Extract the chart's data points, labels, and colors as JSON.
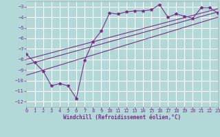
{
  "background_color": "#b2d8d8",
  "grid_color": "#ffffff",
  "line_color": "#7b2d8b",
  "xlabel": "Windchill (Refroidissement éolien,°C)",
  "xlim": [
    0,
    23
  ],
  "ylim": [
    -12.5,
    -2.5
  ],
  "yticks": [
    -3,
    -4,
    -5,
    -6,
    -7,
    -8,
    -9,
    -10,
    -11,
    -12
  ],
  "xticks": [
    0,
    1,
    2,
    3,
    4,
    5,
    6,
    7,
    8,
    9,
    10,
    11,
    12,
    13,
    14,
    15,
    16,
    17,
    18,
    19,
    20,
    21,
    22,
    23
  ],
  "scatter_x": [
    0,
    1,
    2,
    3,
    4,
    5,
    6,
    7,
    8,
    9,
    10,
    11,
    12,
    13,
    14,
    15,
    16,
    17,
    18,
    19,
    20,
    21,
    22,
    23
  ],
  "scatter_y": [
    -7.5,
    -8.3,
    -9.1,
    -10.5,
    -10.3,
    -10.5,
    -11.7,
    -8.1,
    -6.3,
    -5.3,
    -3.6,
    -3.7,
    -3.5,
    -3.4,
    -3.4,
    -3.3,
    -2.8,
    -4.0,
    -3.7,
    -3.9,
    -4.1,
    -3.1,
    -3.1,
    -3.6
  ],
  "line1_x": [
    0,
    23
  ],
  "line1_y": [
    -8.5,
    -3.5
  ],
  "line2_x": [
    0,
    23
  ],
  "line2_y": [
    -9.5,
    -4.0
  ],
  "line3_x": [
    0,
    23
  ],
  "line3_y": [
    -8.0,
    -3.2
  ],
  "tick_fontsize": 5.0,
  "xlabel_fontsize": 5.5,
  "marker_size": 3.0
}
